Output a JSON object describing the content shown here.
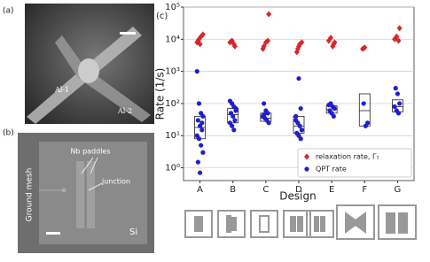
{
  "panels": {
    "a": {
      "label": "(a)",
      "annotations": [
        "Al-1",
        "Al-2"
      ]
    },
    "b": {
      "label": "(b)",
      "annotations": [
        "Nb paddles",
        "junction",
        "Ground mesh",
        "Si"
      ]
    }
  },
  "chart_data": {
    "type": "scatter",
    "panel_label": "(c)",
    "x_label": "Design",
    "y_label": "Rate (1/s)",
    "categories": [
      "A",
      "B",
      "C",
      "D",
      "E",
      "F",
      "G"
    ],
    "log_y": true,
    "grid": true,
    "legend": "lower right",
    "ylim": [
      0.4,
      100000
    ],
    "yticks": [
      {
        "value": 1,
        "label": "10⁰"
      },
      {
        "value": 10,
        "label": "10¹"
      },
      {
        "value": 100,
        "label": "10²"
      },
      {
        "value": 1000,
        "label": "10³"
      },
      {
        "value": 10000,
        "label": "10⁴"
      },
      {
        "value": 100000,
        "label": "10⁵"
      }
    ],
    "series": [
      {
        "name": "relaxation rate, Γ₁",
        "color": "#d62728",
        "marker": "diamond",
        "x": [
          "A",
          "A",
          "A",
          "A",
          "A",
          "A",
          "B",
          "B",
          "B",
          "B",
          "C",
          "C",
          "C",
          "C",
          "C",
          "D",
          "D",
          "D",
          "D",
          "D",
          "E",
          "E",
          "E",
          "E",
          "E",
          "F",
          "F",
          "G",
          "G",
          "G",
          "G"
        ],
        "values": [
          8000,
          10000,
          12000,
          14000,
          9000,
          7000,
          6000,
          8000,
          9000,
          7000,
          60000,
          6000,
          8000,
          9000,
          5000,
          5000,
          7000,
          8000,
          4000,
          6000,
          7000,
          9000,
          11000,
          6000,
          8000,
          5000,
          5500,
          22000,
          10000,
          12000,
          9000
        ]
      },
      {
        "name": "QPT rate",
        "color": "#1f1fcf",
        "marker": "circle",
        "x": [
          "A",
          "A",
          "A",
          "A",
          "A",
          "A",
          "A",
          "A",
          "A",
          "A",
          "A",
          "A",
          "A",
          "A",
          "B",
          "B",
          "B",
          "B",
          "B",
          "B",
          "B",
          "B",
          "B",
          "B",
          "B",
          "C",
          "C",
          "C",
          "C",
          "C",
          "C",
          "C",
          "C",
          "D",
          "D",
          "D",
          "D",
          "D",
          "D",
          "D",
          "D",
          "D",
          "D",
          "E",
          "E",
          "E",
          "E",
          "E",
          "E",
          "E",
          "F",
          "F",
          "F",
          "G",
          "G",
          "G",
          "G",
          "G",
          "G"
        ],
        "values": [
          1000,
          100,
          50,
          40,
          30,
          20,
          15,
          10,
          8,
          5,
          3,
          1.5,
          0.7,
          25,
          120,
          100,
          80,
          60,
          50,
          40,
          30,
          25,
          20,
          15,
          70,
          100,
          60,
          50,
          40,
          35,
          30,
          25,
          45,
          600,
          70,
          40,
          25,
          20,
          15,
          12,
          10,
          8,
          30,
          100,
          80,
          70,
          60,
          50,
          40,
          90,
          100,
          20,
          25,
          300,
          200,
          100,
          80,
          60,
          50
        ]
      }
    ],
    "boxes": {
      "q1": [
        8,
        25,
        28,
        12,
        50,
        20,
        55
      ],
      "median": [
        18,
        45,
        35,
        20,
        65,
        60,
        80
      ],
      "q3": [
        40,
        70,
        50,
        40,
        85,
        200,
        130
      ]
    }
  }
}
